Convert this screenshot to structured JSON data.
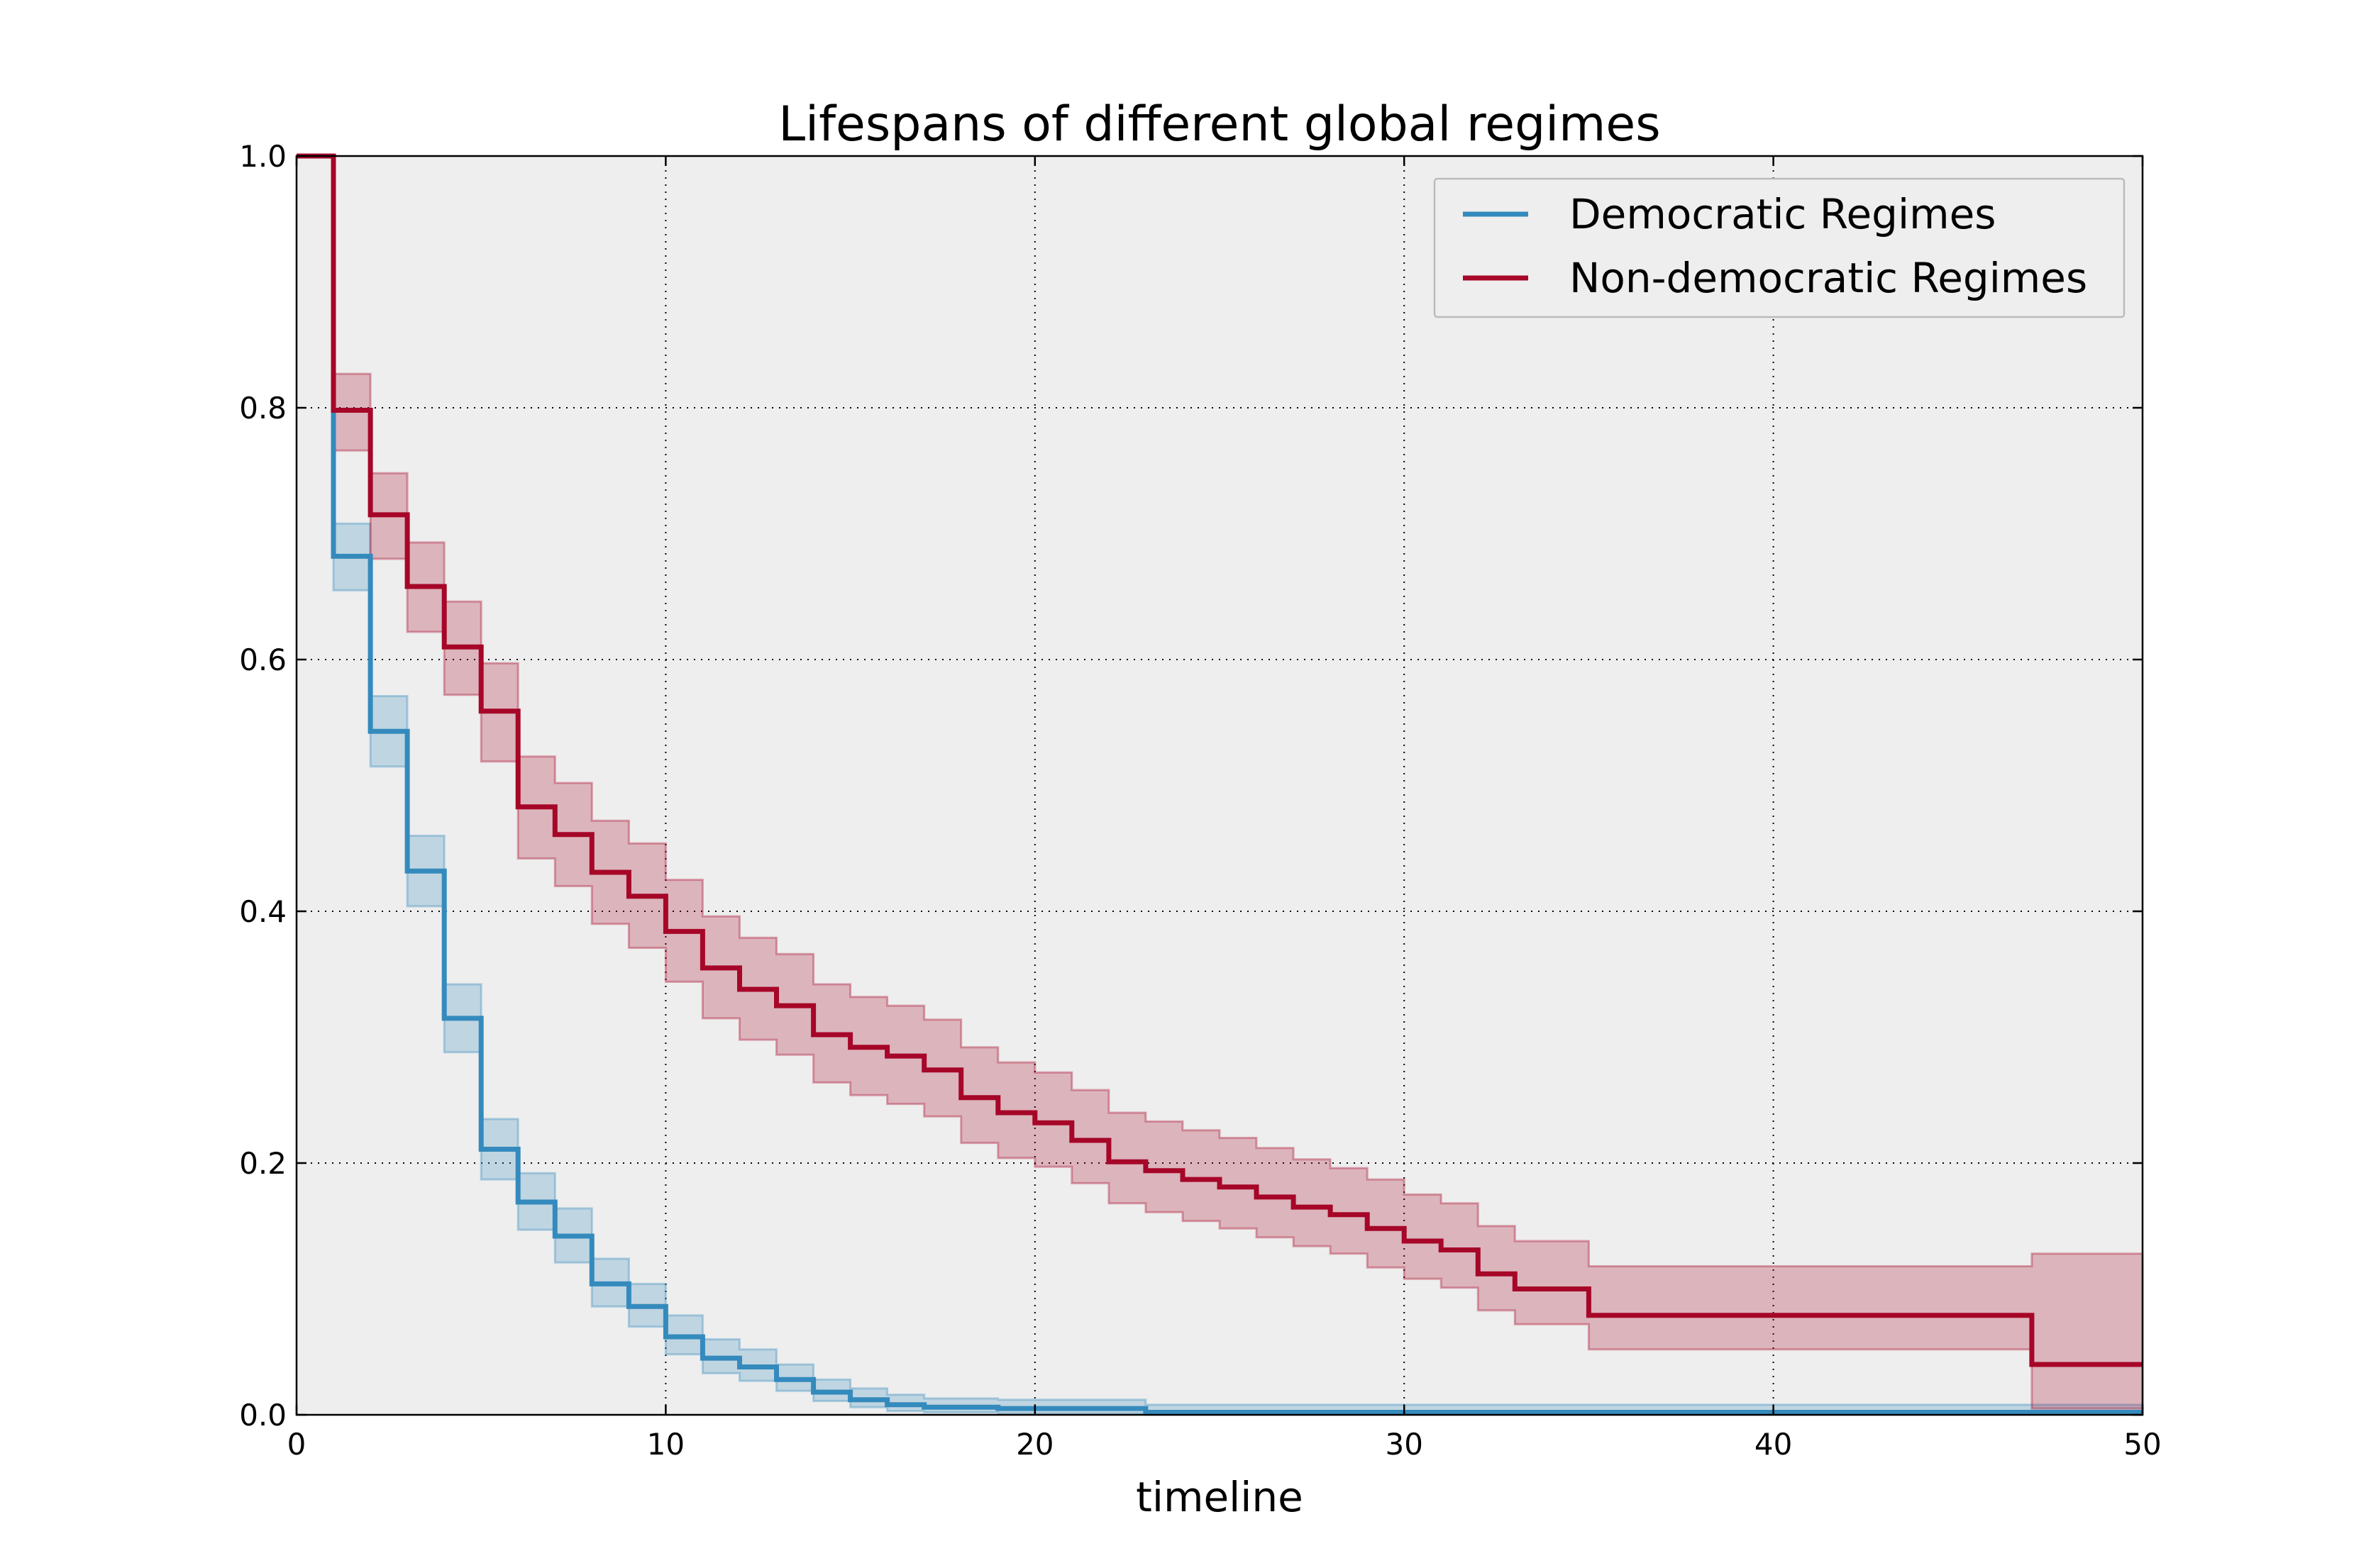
{
  "chart_data": {
    "type": "line",
    "step": true,
    "title": "Lifespans of different global regimes",
    "xlabel": "timeline",
    "ylabel": "",
    "xlim": [
      0,
      50
    ],
    "ylim": [
      0,
      1.0
    ],
    "grid": true,
    "legend_position": "top-right",
    "x_ticks": [
      0,
      10,
      20,
      30,
      40,
      50
    ],
    "x_tick_labels": [
      "0",
      "10",
      "20",
      "30",
      "40",
      "50"
    ],
    "y_ticks": [
      0.0,
      0.2,
      0.4,
      0.6,
      0.8,
      1.0
    ],
    "y_tick_labels": [
      "0.0",
      "0.2",
      "0.4",
      "0.6",
      "0.8",
      "1.0"
    ],
    "series": [
      {
        "name": "Democratic Regimes",
        "color": "#348ABD",
        "x": [
          0,
          1,
          2,
          3,
          4,
          5,
          6,
          7,
          8,
          9,
          10,
          11,
          12,
          13,
          14,
          15,
          16,
          17,
          19,
          23,
          50
        ],
        "y": [
          1.0,
          0.682,
          0.543,
          0.432,
          0.315,
          0.211,
          0.169,
          0.142,
          0.104,
          0.086,
          0.062,
          0.045,
          0.038,
          0.028,
          0.018,
          0.012,
          0.008,
          0.006,
          0.005,
          0.002,
          0.002
        ],
        "ci_lower": [
          1.0,
          0.655,
          0.515,
          0.404,
          0.288,
          0.187,
          0.147,
          0.121,
          0.086,
          0.07,
          0.048,
          0.033,
          0.027,
          0.019,
          0.011,
          0.006,
          0.003,
          0.002,
          0.001,
          0.0,
          0.0
        ],
        "ci_upper": [
          1.0,
          0.708,
          0.571,
          0.46,
          0.342,
          0.235,
          0.192,
          0.164,
          0.124,
          0.104,
          0.079,
          0.06,
          0.052,
          0.04,
          0.028,
          0.021,
          0.016,
          0.013,
          0.012,
          0.008,
          0.008
        ]
      },
      {
        "name": "Non-democratic Regimes",
        "color": "#A60628",
        "x": [
          0,
          1,
          2,
          3,
          4,
          5,
          6,
          7,
          8,
          9,
          10,
          11,
          12,
          13,
          14,
          15,
          16,
          17,
          18,
          19,
          20,
          21,
          22,
          23,
          24,
          25,
          26,
          27,
          28,
          29,
          30,
          31,
          32,
          33,
          35,
          47,
          50
        ],
        "y": [
          1.0,
          0.798,
          0.715,
          0.658,
          0.61,
          0.559,
          0.483,
          0.461,
          0.431,
          0.412,
          0.384,
          0.355,
          0.338,
          0.325,
          0.302,
          0.292,
          0.285,
          0.274,
          0.252,
          0.24,
          0.232,
          0.218,
          0.201,
          0.194,
          0.187,
          0.181,
          0.173,
          0.165,
          0.159,
          0.148,
          0.138,
          0.131,
          0.112,
          0.1,
          0.079,
          0.04,
          0.04
        ],
        "ci_lower": [
          1.0,
          0.766,
          0.68,
          0.622,
          0.572,
          0.519,
          0.442,
          0.42,
          0.39,
          0.371,
          0.344,
          0.315,
          0.298,
          0.286,
          0.264,
          0.254,
          0.247,
          0.237,
          0.216,
          0.204,
          0.197,
          0.184,
          0.168,
          0.161,
          0.154,
          0.148,
          0.141,
          0.134,
          0.128,
          0.117,
          0.108,
          0.101,
          0.083,
          0.072,
          0.052,
          0.005,
          0.005
        ],
        "ci_upper": [
          1.0,
          0.827,
          0.748,
          0.693,
          0.646,
          0.597,
          0.523,
          0.502,
          0.472,
          0.454,
          0.425,
          0.396,
          0.379,
          0.366,
          0.342,
          0.332,
          0.325,
          0.314,
          0.292,
          0.28,
          0.272,
          0.258,
          0.24,
          0.233,
          0.226,
          0.22,
          0.212,
          0.203,
          0.196,
          0.187,
          0.175,
          0.168,
          0.15,
          0.138,
          0.118,
          0.128,
          0.128
        ]
      }
    ]
  }
}
